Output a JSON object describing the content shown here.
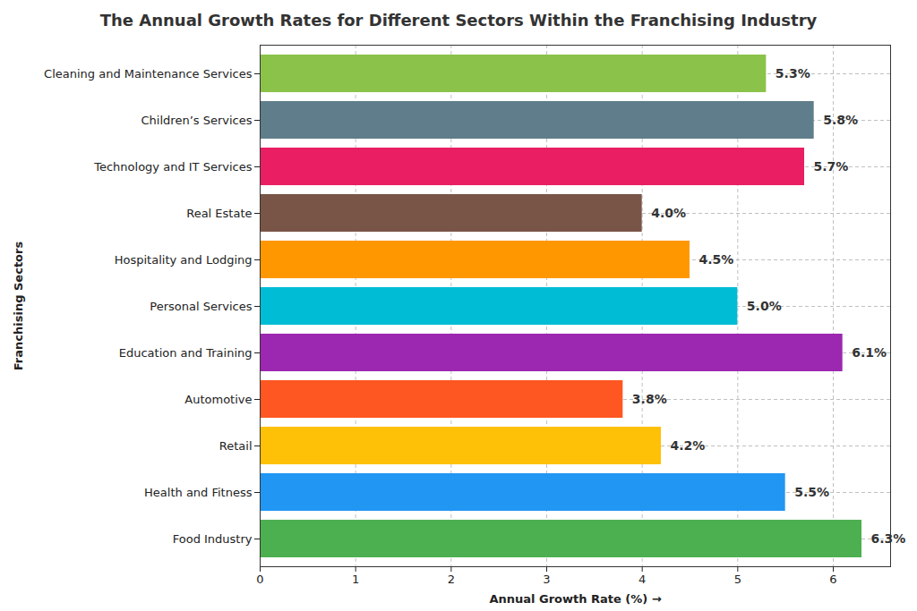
{
  "chart_data": {
    "type": "bar",
    "orientation": "horizontal",
    "title": "The Annual Growth Rates for Different Sectors Within the Franchising Industry",
    "x_label": "Annual Growth Rate (%)",
    "y_label": "Franchising Sectors",
    "categories": [
      "Cleaning and Maintenance Services",
      "Children’s Services",
      "Technology and IT Services",
      "Real Estate",
      "Hospitality and Lodging",
      "Personal Services",
      "Education and Training",
      "Automotive",
      "Retail",
      "Health and Fitness",
      "Food Industry"
    ],
    "values": [
      5.3,
      5.8,
      5.7,
      4.0,
      4.5,
      5.0,
      6.1,
      3.8,
      4.2,
      5.5,
      6.3
    ],
    "value_labels": [
      "5.3%",
      "5.8%",
      "5.7%",
      "4.0%",
      "4.5%",
      "5.0%",
      "6.1%",
      "3.8%",
      "4.2%",
      "5.5%",
      "6.3%"
    ],
    "colors": [
      "#8bc34a",
      "#607d8b",
      "#e91e63",
      "#795548",
      "#ff9800",
      "#00bcd4",
      "#9c27b0",
      "#ff5722",
      "#ffc107",
      "#2196f3",
      "#4caf50"
    ],
    "xlim": [
      0,
      6.6
    ],
    "xticks": [
      0,
      1,
      2,
      3,
      4,
      5,
      6
    ],
    "grid": true,
    "data_labels": true
  }
}
